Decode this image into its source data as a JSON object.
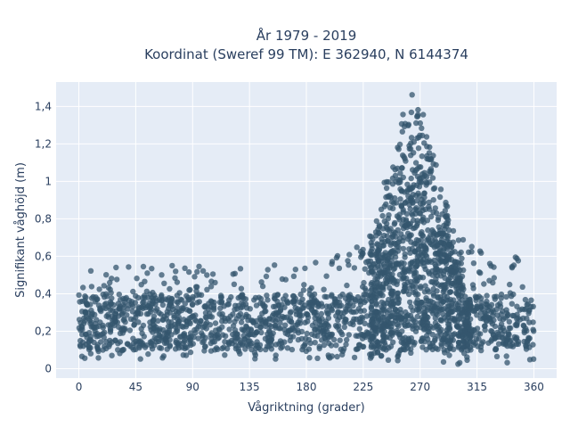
{
  "chart_data": {
    "type": "scatter",
    "title_line1": "År 1979 - 2019",
    "title_line2": "Koordinat (Sweref 99 TM): E 362940, N 6144374",
    "xlabel": "Vågriktning (grader)",
    "ylabel": "Signifikant våghöjd (m)",
    "xlim": [
      -18,
      378
    ],
    "ylim": [
      -0.05,
      1.53
    ],
    "x_ticks": [
      0,
      45,
      90,
      135,
      180,
      225,
      270,
      315,
      360
    ],
    "x_tick_labels": [
      "0",
      "45",
      "90",
      "135",
      "180",
      "225",
      "270",
      "315",
      "360"
    ],
    "y_ticks": [
      0,
      0.2,
      0.4,
      0.6,
      0.8,
      1.0,
      1.2,
      1.4
    ],
    "y_tick_labels": [
      "0",
      "0,2",
      "0,4",
      "0,6",
      "0,8",
      "1",
      "1,2",
      "1,4"
    ],
    "grid": true,
    "marker_color": "#34566e",
    "plot_bg": "#e5ecf6",
    "envelope": {
      "direction_deg": [
        0,
        45,
        90,
        135,
        180,
        200,
        220,
        235,
        250,
        260,
        265,
        270,
        280,
        290,
        300,
        315,
        330,
        345,
        360
      ],
      "lower_m": [
        0.05,
        0.05,
        0.05,
        0.05,
        0.05,
        0.05,
        0.05,
        0.04,
        0.03,
        0.02,
        0.02,
        0.02,
        0.02,
        0.02,
        0.02,
        0.02,
        0.02,
        0.02,
        0.05
      ],
      "upper_m": [
        0.55,
        0.55,
        0.55,
        0.55,
        0.56,
        0.6,
        0.65,
        0.8,
        1.25,
        1.45,
        1.48,
        1.45,
        1.2,
        0.9,
        0.72,
        0.65,
        0.6,
        0.6,
        0.55
      ]
    }
  }
}
